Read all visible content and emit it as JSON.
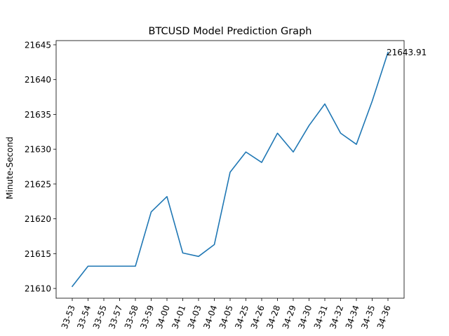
{
  "chart_data": {
    "type": "line",
    "title": "BTCUSD Model Prediction Graph",
    "xlabel": "",
    "ylabel": "Minute-Second",
    "categories": [
      "33-53",
      "33-54",
      "33-55",
      "33-57",
      "33-58",
      "33-59",
      "34-00",
      "34-01",
      "34-03",
      "34-04",
      "34-05",
      "34-25",
      "34-26",
      "34-28",
      "34-29",
      "34-30",
      "34-31",
      "34-32",
      "34-34",
      "34-35",
      "34-36"
    ],
    "series": [
      {
        "values": [
          21610.3,
          21613.2,
          21613.2,
          21613.2,
          21613.2,
          21621.0,
          21623.2,
          21615.1,
          21614.6,
          21616.3,
          21626.7,
          21629.6,
          21628.1,
          21632.3,
          21629.6,
          21633.4,
          21636.5,
          21632.3,
          21630.7,
          21636.9,
          21643.91
        ],
        "color": "#1f77b4"
      }
    ],
    "yticks": [
      "21610",
      "21615",
      "21620",
      "21625",
      "21630",
      "21635",
      "21640",
      "21645"
    ],
    "ylim": [
      21608.6,
      21645.6
    ],
    "annotation": {
      "text": "21643.91",
      "category": "34-36",
      "value": 21643.91
    },
    "grid": false,
    "legend": "none"
  }
}
